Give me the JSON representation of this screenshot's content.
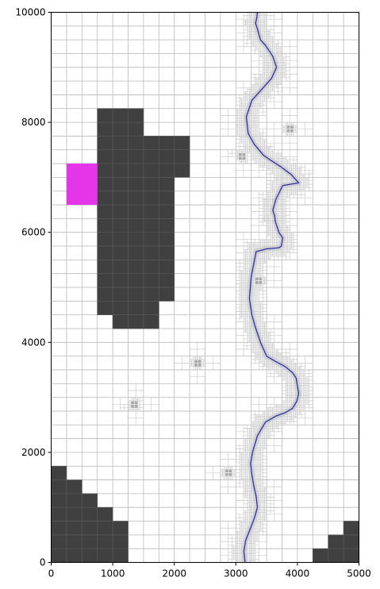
{
  "chart_data": {
    "type": "map",
    "title": "",
    "xlabel": "",
    "ylabel": "",
    "xlim": [
      0,
      5000
    ],
    "ylim": [
      0,
      10000
    ],
    "x_ticks": [
      "0",
      "1000",
      "2000",
      "3000",
      "4000",
      "5000"
    ],
    "y_ticks": [
      "0",
      "2000",
      "4000",
      "6000",
      "8000",
      "10000"
    ],
    "x_tick_values": [
      0,
      1000,
      2000,
      3000,
      4000,
      5000
    ],
    "y_tick_values": [
      0,
      2000,
      4000,
      6000,
      8000,
      10000
    ],
    "grid": "adaptive quadtree mesh, base cell 250 x 250, refined near river and point sources",
    "colors": {
      "obstacle": "#404040",
      "target": "#e535e8",
      "river": "#2e2ea0",
      "mesh": "#b8b8b8",
      "source": "#a9a9a9"
    },
    "obstacles": [
      {
        "name": "main-block",
        "cells": [
          [
            750,
            1500,
            7750,
            8250
          ],
          [
            750,
            2000,
            7250,
            7750
          ],
          [
            750,
            2250,
            7250,
            7750
          ],
          [
            750,
            2250,
            7000,
            7250
          ],
          [
            750,
            2000,
            4750,
            7000
          ],
          [
            750,
            1750,
            4500,
            4750
          ],
          [
            1000,
            1750,
            4250,
            4500
          ]
        ]
      },
      {
        "name": "bottom-left-block",
        "cells": [
          [
            0,
            250,
            1500,
            1750
          ],
          [
            0,
            500,
            1250,
            1500
          ],
          [
            0,
            750,
            1000,
            1250
          ],
          [
            0,
            1000,
            750,
            1000
          ],
          [
            0,
            1250,
            250,
            750
          ],
          [
            0,
            1250,
            0,
            250
          ]
        ]
      },
      {
        "name": "bottom-right-block",
        "cells": [
          [
            4750,
            5000,
            500,
            750
          ],
          [
            4500,
            5000,
            250,
            500
          ],
          [
            4250,
            5000,
            0,
            250
          ]
        ]
      }
    ],
    "target_zone": {
      "x": [
        250,
        750
      ],
      "y": [
        6500,
        7250
      ]
    },
    "river": {
      "x": [
        3150,
        3130,
        3160,
        3230,
        3300,
        3350,
        3330,
        3290,
        3260,
        3240,
        3270,
        3350,
        3480,
        3650,
        3800,
        3920,
        3990,
        4020,
        3980,
        3920,
        3800,
        3650,
        3500,
        3400,
        3310,
        3260,
        3220,
        3250,
        3330,
        3500,
        3700,
        3740,
        3760,
        3700,
        3640,
        3630,
        3600,
        3650,
        3760,
        4020,
        3900,
        3720,
        3580,
        3450,
        3300,
        3200,
        3170,
        3260,
        3420,
        3580,
        3660,
        3600,
        3480,
        3400,
        3350,
        3320,
        3340,
        3350
      ],
      "y": [
        0,
        200,
        400,
        600,
        800,
        1000,
        1200,
        1400,
        1600,
        1800,
        2000,
        2300,
        2550,
        2660,
        2720,
        2800,
        2930,
        3070,
        3350,
        3450,
        3560,
        3650,
        3750,
        4000,
        4300,
        4500,
        4800,
        5200,
        5650,
        5700,
        5720,
        5750,
        5900,
        6000,
        6200,
        6300,
        6400,
        6600,
        6850,
        6900,
        7050,
        7200,
        7300,
        7400,
        7600,
        7800,
        8100,
        8400,
        8600,
        8800,
        9000,
        9200,
        9400,
        9500,
        9700,
        9800,
        9900,
        10000
      ]
    },
    "point_sources": [
      [
        1350,
        2870
      ],
      [
        2380,
        3620
      ],
      [
        2880,
        1630
      ],
      [
        3100,
        7380
      ],
      [
        3880,
        7880
      ],
      [
        3370,
        5120
      ]
    ]
  }
}
